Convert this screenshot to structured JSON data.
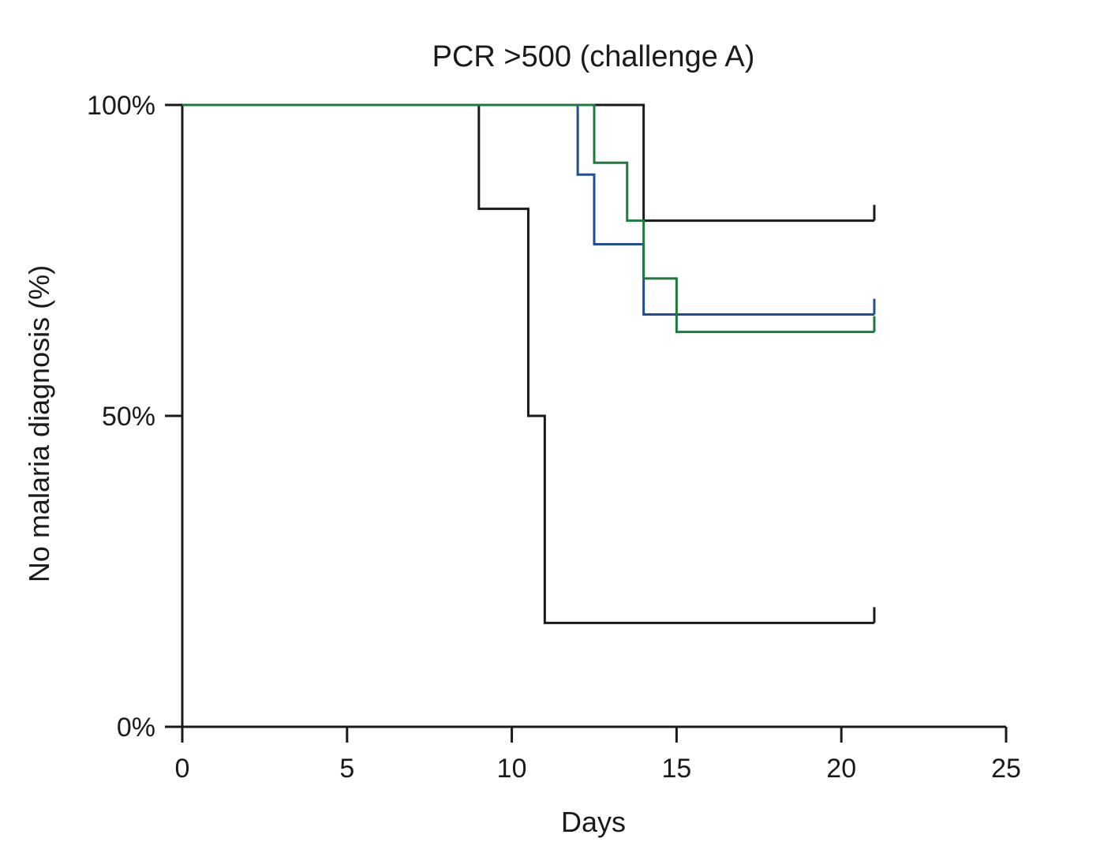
{
  "chart_data": {
    "type": "line",
    "subtype": "kaplan-meier-step",
    "title": "PCR >500 (challenge A)",
    "xlabel": "Days",
    "ylabel": "No malaria diagnosis (%)",
    "xlim": [
      0,
      25
    ],
    "ylim": [
      0,
      100
    ],
    "x_ticks": [
      0,
      5,
      10,
      15,
      20,
      25
    ],
    "x_tick_labels": [
      "0",
      "5",
      "10",
      "15",
      "20",
      "25"
    ],
    "y_ticks": [
      0,
      50,
      100
    ],
    "y_tick_labels": [
      "0%",
      "50%",
      "100%"
    ],
    "grid": false,
    "legend": "none",
    "series": [
      {
        "color": "#1a1a1a",
        "steps": [
          [
            0,
            100
          ],
          [
            9,
            83.3
          ],
          [
            10.5,
            50
          ],
          [
            11,
            16.7
          ]
        ],
        "end_x": 21,
        "censor_marks": [
          [
            21,
            16.7
          ]
        ]
      },
      {
        "color": "#1a1a1a",
        "steps": [
          [
            0,
            100
          ],
          [
            14,
            81.4
          ]
        ],
        "end_x": 21,
        "censor_marks": [
          [
            21,
            81.4
          ]
        ]
      },
      {
        "color": "#1f4e96",
        "steps": [
          [
            0,
            100
          ],
          [
            12,
            88.8
          ],
          [
            12.5,
            77.6
          ],
          [
            14,
            66.3
          ]
        ],
        "end_x": 21,
        "censor_marks": [
          [
            21,
            66.3
          ]
        ]
      },
      {
        "color": "#1d7a3e",
        "steps": [
          [
            0,
            100
          ],
          [
            12.5,
            90.7
          ],
          [
            13.5,
            81.4
          ],
          [
            14,
            72.1
          ],
          [
            15,
            63.5
          ]
        ],
        "end_x": 21,
        "censor_marks": [
          [
            21,
            63.5
          ]
        ]
      }
    ]
  }
}
